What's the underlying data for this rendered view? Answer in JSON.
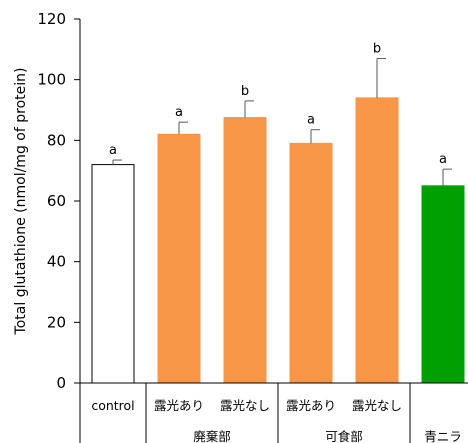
{
  "chart_data": {
    "type": "bar",
    "ylabel": "Total glutathione (nmol/mg of protein)",
    "ylim": [
      0,
      120
    ],
    "yticks": [
      0,
      20,
      40,
      60,
      80,
      100,
      120
    ],
    "grid": false,
    "legend": "none",
    "categories": [
      "control",
      "露光あり",
      "露光なし",
      "露光あり",
      "露光なし",
      "青ニラ"
    ],
    "values": [
      72,
      82,
      87.5,
      79,
      94,
      65
    ],
    "error": [
      1.5,
      4,
      5.5,
      4.5,
      13,
      5.5
    ],
    "significance": [
      "a",
      "a",
      "b",
      "a",
      "b",
      "a"
    ],
    "fills": [
      "#ffffff",
      "#f79646",
      "#f79646",
      "#f79646",
      "#f79646",
      "#00a000"
    ],
    "strokes": [
      "#000000",
      "#f79646",
      "#f79646",
      "#f79646",
      "#f79646",
      "#00a000"
    ],
    "groups": [
      {
        "label": "廃棄部",
        "from": 1,
        "to": 2
      },
      {
        "label": "可食部",
        "from": 3,
        "to": 4
      },
      {
        "label": "青ニラ",
        "from": 5,
        "to": 5
      }
    ]
  }
}
